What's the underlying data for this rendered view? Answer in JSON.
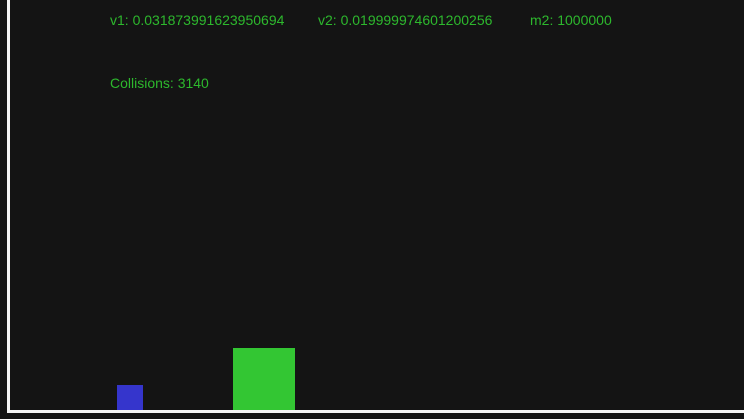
{
  "stats": {
    "v1": "v1: 0.031873991623950694",
    "v2": "v2: 0.019999974601200256",
    "m2": "m2: 1000000",
    "collisions": "Collisions: 3140"
  },
  "colors": {
    "background": "#141414",
    "text": "#2db82d",
    "small_block": "#3535cc",
    "large_block": "#33c633",
    "wall": "#f4f4f4"
  }
}
